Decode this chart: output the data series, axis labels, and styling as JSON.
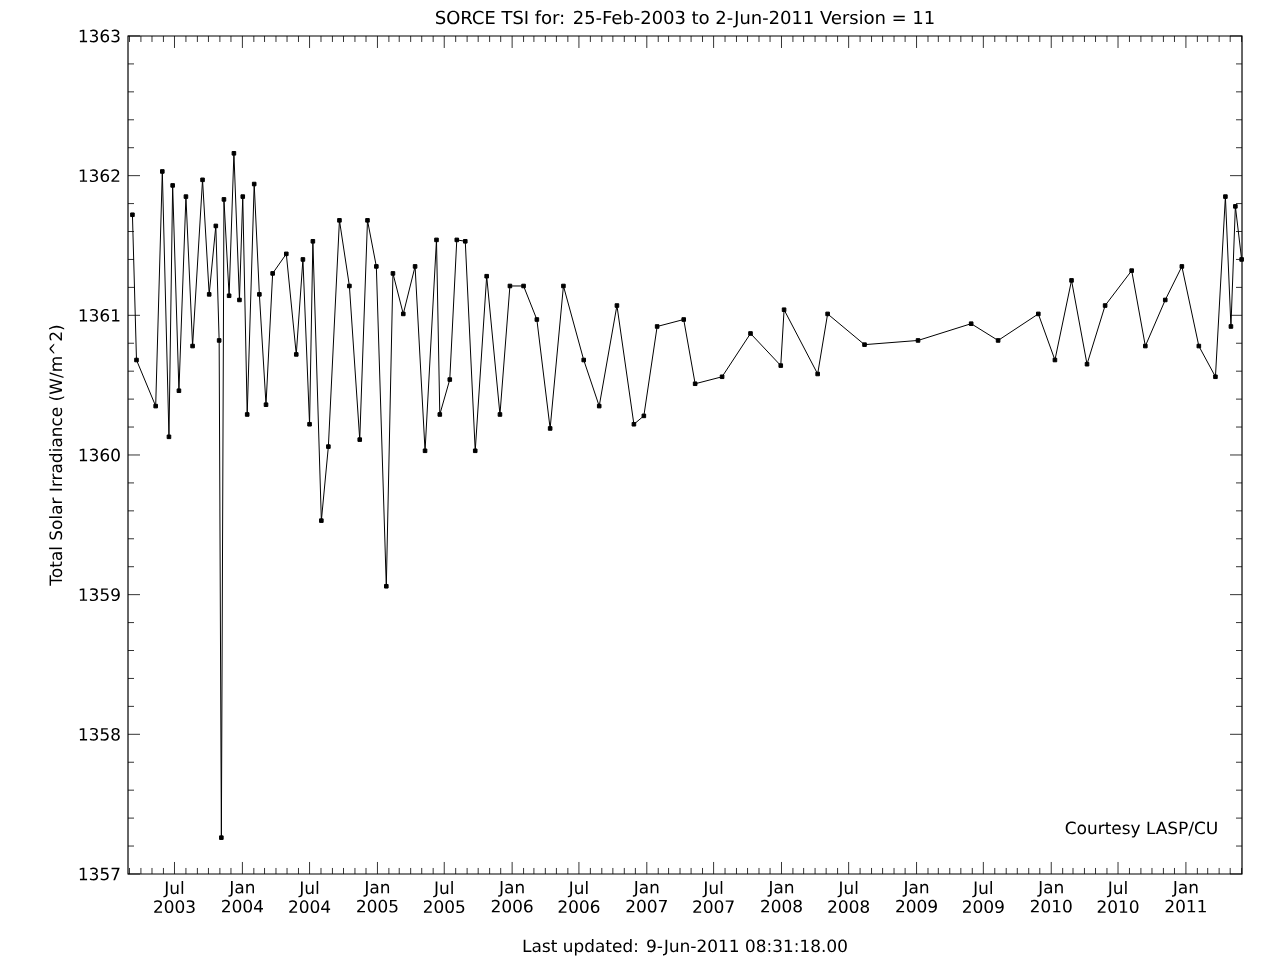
{
  "chart_data": {
    "type": "line",
    "title": "SORCE TSI for: 25-Feb-2003 to  2-Jun-2011 Version = 11",
    "ylabel": "Total Solar Irradiance (W/m^2)",
    "annotations": [
      "Courtesy LASP/CU",
      "Last updated:  9-Jun-2011 08:31:18.00"
    ],
    "color": "#000000",
    "marker": "square",
    "line_style": "solid",
    "xlim": [
      "2003-02-25",
      "2011-06-02"
    ],
    "ylim": [
      1357,
      1363
    ],
    "yticks": [
      1357,
      1358,
      1359,
      1360,
      1361,
      1362,
      1363
    ],
    "xticks": [
      {
        "value": "2003-07-01",
        "label": "Jul 2003"
      },
      {
        "value": "2004-01-01",
        "label": "Jan 2004"
      },
      {
        "value": "2004-07-01",
        "label": "Jul 2004"
      },
      {
        "value": "2005-01-01",
        "label": "Jan 2005"
      },
      {
        "value": "2005-07-01",
        "label": "Jul 2005"
      },
      {
        "value": "2006-01-01",
        "label": "Jan 2006"
      },
      {
        "value": "2006-07-01",
        "label": "Jul 2006"
      },
      {
        "value": "2007-01-01",
        "label": "Jan 2007"
      },
      {
        "value": "2007-07-01",
        "label": "Jul 2007"
      },
      {
        "value": "2008-01-01",
        "label": "Jan 2008"
      },
      {
        "value": "2008-07-01",
        "label": "Jul 2008"
      },
      {
        "value": "2009-01-01",
        "label": "Jan 2009"
      },
      {
        "value": "2009-07-01",
        "label": "Jul 2009"
      },
      {
        "value": "2010-01-01",
        "label": "Jan 2010"
      },
      {
        "value": "2010-07-01",
        "label": "Jul 2010"
      },
      {
        "value": "2011-01-01",
        "label": "Jan 2011"
      }
    ],
    "x": [
      "2003-03-09",
      "2003-03-20",
      "2003-05-11",
      "2003-05-29",
      "2003-06-16",
      "2003-06-26",
      "2003-07-13",
      "2003-08-01",
      "2003-08-19",
      "2003-09-15",
      "2003-10-03",
      "2003-10-21",
      "2003-10-30",
      "2003-11-05",
      "2003-11-12",
      "2003-11-26",
      "2003-12-09",
      "2003-12-24",
      "2004-01-02",
      "2004-01-14",
      "2004-02-02",
      "2004-02-16",
      "2004-03-05",
      "2004-03-23",
      "2004-04-29",
      "2004-05-26",
      "2004-06-13",
      "2004-07-01",
      "2004-07-10",
      "2004-08-02",
      "2004-08-21",
      "2004-09-20",
      "2004-10-17",
      "2004-11-14",
      "2004-12-05",
      "2004-12-29",
      "2005-01-25",
      "2005-02-12",
      "2005-03-12",
      "2005-04-13",
      "2005-05-10",
      "2005-06-10",
      "2005-06-19",
      "2005-07-16",
      "2005-08-04",
      "2005-08-27",
      "2005-09-23",
      "2005-10-24",
      "2005-11-29",
      "2005-12-26",
      "2006-02-01",
      "2006-03-09",
      "2006-04-14",
      "2006-05-20",
      "2006-07-14",
      "2006-08-25",
      "2006-10-12",
      "2006-11-27",
      "2006-12-24",
      "2007-01-29",
      "2007-04-11",
      "2007-05-12",
      "2007-07-24",
      "2007-10-09",
      "2007-12-30",
      "2008-01-08",
      "2008-04-08",
      "2008-05-05",
      "2008-08-13",
      "2009-01-05",
      "2009-05-29",
      "2009-08-10",
      "2009-11-27",
      "2010-01-11",
      "2010-02-25",
      "2010-04-08",
      "2010-05-27",
      "2010-08-07",
      "2010-09-13",
      "2010-11-06",
      "2010-12-21",
      "2011-02-05",
      "2011-03-22",
      "2011-04-18",
      "2011-05-03",
      "2011-05-15",
      "2011-06-01"
    ],
    "values": [
      1361.72,
      1360.68,
      1360.35,
      1362.03,
      1360.13,
      1361.93,
      1360.46,
      1361.85,
      1360.78,
      1361.97,
      1361.15,
      1361.64,
      1360.82,
      1357.26,
      1361.83,
      1361.14,
      1362.16,
      1361.11,
      1361.85,
      1360.29,
      1361.94,
      1361.15,
      1360.36,
      1361.3,
      1361.44,
      1360.72,
      1361.4,
      1360.22,
      1361.53,
      1359.53,
      1360.06,
      1361.68,
      1361.21,
      1360.11,
      1361.68,
      1361.35,
      1359.06,
      1361.3,
      1361.01,
      1361.35,
      1360.03,
      1361.54,
      1360.29,
      1360.54,
      1361.54,
      1361.53,
      1360.03,
      1361.28,
      1360.29,
      1361.21,
      1361.21,
      1360.97,
      1360.19,
      1361.21,
      1360.68,
      1360.35,
      1361.07,
      1360.22,
      1360.28,
      1360.92,
      1360.97,
      1360.51,
      1360.56,
      1360.87,
      1360.64,
      1361.04,
      1360.58,
      1361.01,
      1360.79,
      1360.82,
      1360.94,
      1360.82,
      1361.01,
      1360.68,
      1361.25,
      1360.65,
      1361.07,
      1361.32,
      1360.78,
      1361.11,
      1361.35,
      1360.78,
      1360.56,
      1361.85,
      1360.92,
      1361.78,
      1361.4
    ]
  }
}
